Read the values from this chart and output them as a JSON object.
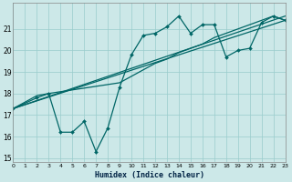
{
  "title": "",
  "xlabel": "Humidex (Indice chaleur)",
  "bg_color": "#cce8e8",
  "line_color": "#006666",
  "grid_color": "#99cccc",
  "xlim": [
    0,
    23
  ],
  "ylim": [
    14.8,
    22.2
  ],
  "xticks": [
    0,
    1,
    2,
    3,
    4,
    5,
    6,
    7,
    8,
    9,
    10,
    11,
    12,
    13,
    14,
    15,
    16,
    17,
    18,
    19,
    20,
    21,
    22,
    23
  ],
  "yticks": [
    15,
    16,
    17,
    18,
    19,
    20,
    21
  ],
  "lines": [
    {
      "x": [
        0,
        2,
        3,
        4,
        5,
        6,
        7,
        8,
        9,
        10,
        11,
        12,
        13,
        14,
        15,
        16,
        17,
        18,
        19,
        20,
        21,
        22,
        23
      ],
      "y": [
        17.3,
        17.8,
        18.0,
        16.2,
        16.2,
        16.7,
        15.3,
        16.4,
        18.3,
        19.8,
        20.7,
        20.8,
        21.1,
        21.6,
        20.8,
        21.2,
        21.2,
        19.7,
        20.0,
        20.1,
        21.3,
        21.6,
        21.4
      ],
      "marker": true
    },
    {
      "x": [
        0,
        23
      ],
      "y": [
        17.3,
        21.4
      ],
      "marker": false
    },
    {
      "x": [
        0,
        23
      ],
      "y": [
        17.3,
        21.6
      ],
      "marker": false
    },
    {
      "x": [
        0,
        2,
        3,
        9,
        10,
        11,
        12,
        13,
        14,
        15,
        16,
        17,
        18,
        19,
        20,
        21,
        22,
        23
      ],
      "y": [
        17.3,
        17.9,
        18.0,
        18.5,
        18.8,
        19.1,
        19.4,
        19.6,
        19.9,
        20.1,
        20.3,
        20.6,
        20.8,
        21.0,
        21.2,
        21.4,
        21.6,
        21.4
      ],
      "marker": false
    }
  ]
}
